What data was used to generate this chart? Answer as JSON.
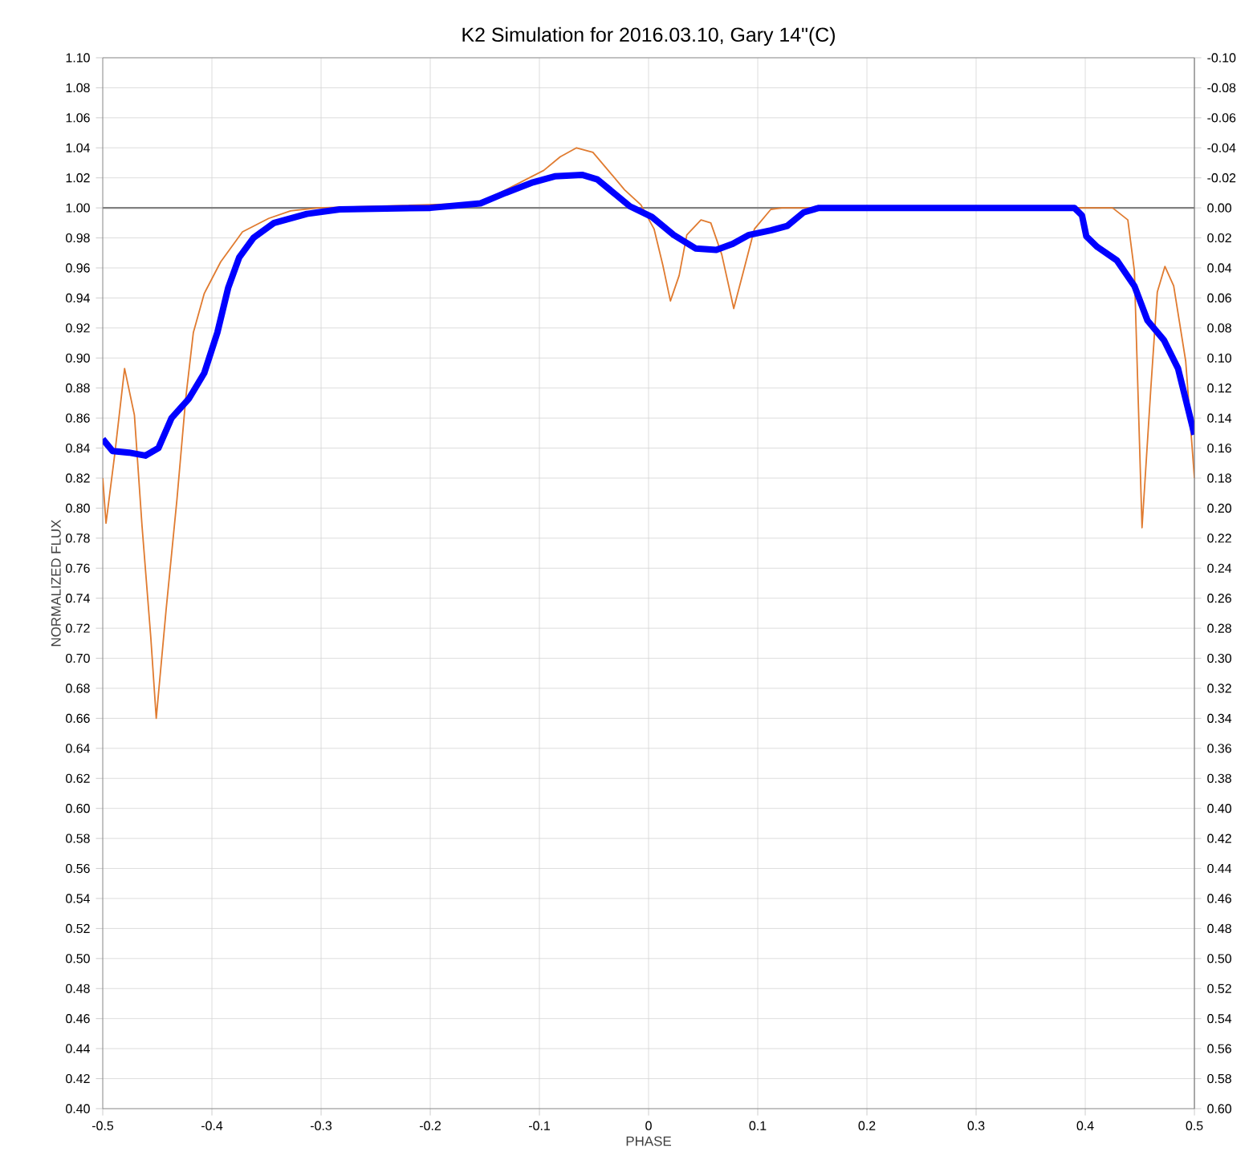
{
  "chart_data": {
    "type": "line",
    "title": "K2 Simulation for 2016.03.10, Gary 14\"(C)",
    "xlabel": "PHASE",
    "ylabel": "NORMALIZED FLUX",
    "xlim": [
      -0.5,
      0.5
    ],
    "xticks": [
      -0.5,
      -0.4,
      -0.3,
      -0.2,
      -0.1,
      0,
      0.1,
      0.2,
      0.3,
      0.4,
      0.5
    ],
    "ylim": [
      0.4,
      1.1
    ],
    "yticks": [
      {
        "value": 0.4,
        "label": "0.40"
      },
      {
        "value": 0.42,
        "label": "0.42"
      },
      {
        "value": 0.44,
        "label": "0.44"
      },
      {
        "value": 0.46,
        "label": "0.46"
      },
      {
        "value": 0.48,
        "label": "0.48"
      },
      {
        "value": 0.5,
        "label": "0.50"
      },
      {
        "value": 0.52,
        "label": "0.52"
      },
      {
        "value": 0.54,
        "label": "0.54"
      },
      {
        "value": 0.56,
        "label": "0.56"
      },
      {
        "value": 0.58,
        "label": "0.58"
      },
      {
        "value": 0.6,
        "label": "0.60"
      },
      {
        "value": 0.62,
        "label": "0.62"
      },
      {
        "value": 0.64,
        "label": "0.64"
      },
      {
        "value": 0.66,
        "label": "0.66"
      },
      {
        "value": 0.68,
        "label": "0.68"
      },
      {
        "value": 0.7,
        "label": "0.70"
      },
      {
        "value": 0.72,
        "label": "0.72"
      },
      {
        "value": 0.74,
        "label": "0.74"
      },
      {
        "value": 0.76,
        "label": "0.76"
      },
      {
        "value": 0.78,
        "label": "0.78"
      },
      {
        "value": 0.8,
        "label": "0.80"
      },
      {
        "value": 0.82,
        "label": "0.82"
      },
      {
        "value": 0.84,
        "label": "0.84"
      },
      {
        "value": 0.86,
        "label": "0.86"
      },
      {
        "value": 0.88,
        "label": "0.88"
      },
      {
        "value": 0.9,
        "label": "0.90"
      },
      {
        "value": 0.92,
        "label": "0.92"
      },
      {
        "value": 0.94,
        "label": "0.94"
      },
      {
        "value": 0.96,
        "label": "0.96"
      },
      {
        "value": 0.98,
        "label": "0.98"
      },
      {
        "value": 1.0,
        "label": "1.00"
      },
      {
        "value": 1.02,
        "label": "1.02"
      },
      {
        "value": 1.04,
        "label": "1.04"
      },
      {
        "value": 1.06,
        "label": "1.06"
      },
      {
        "value": 1.08,
        "label": "1.08"
      },
      {
        "value": 1.1,
        "label": "1.10"
      }
    ],
    "y2lim": [
      0.6,
      -0.1
    ],
    "y2ticks": [
      {
        "value": -0.1,
        "label": "-0.10"
      },
      {
        "value": -0.08,
        "label": "-0.08"
      },
      {
        "value": -0.06,
        "label": "-0.06"
      },
      {
        "value": -0.04,
        "label": "-0.04"
      },
      {
        "value": -0.02,
        "label": "-0.02"
      },
      {
        "value": 0.0,
        "label": "0.00"
      },
      {
        "value": 0.02,
        "label": "0.02"
      },
      {
        "value": 0.04,
        "label": "0.04"
      },
      {
        "value": 0.06,
        "label": "0.06"
      },
      {
        "value": 0.08,
        "label": "0.08"
      },
      {
        "value": 0.1,
        "label": "0.10"
      },
      {
        "value": 0.12,
        "label": "0.12"
      },
      {
        "value": 0.14,
        "label": "0.14"
      },
      {
        "value": 0.16,
        "label": "0.16"
      },
      {
        "value": 0.18,
        "label": "0.18"
      },
      {
        "value": 0.2,
        "label": "0.20"
      },
      {
        "value": 0.22,
        "label": "0.22"
      },
      {
        "value": 0.24,
        "label": "0.24"
      },
      {
        "value": 0.26,
        "label": "0.26"
      },
      {
        "value": 0.28,
        "label": "0.28"
      },
      {
        "value": 0.3,
        "label": "0.30"
      },
      {
        "value": 0.32,
        "label": "0.32"
      },
      {
        "value": 0.34,
        "label": "0.34"
      },
      {
        "value": 0.36,
        "label": "0.36"
      },
      {
        "value": 0.38,
        "label": "0.38"
      },
      {
        "value": 0.4,
        "label": "0.40"
      },
      {
        "value": 0.42,
        "label": "0.42"
      },
      {
        "value": 0.44,
        "label": "0.44"
      },
      {
        "value": 0.46,
        "label": "0.46"
      },
      {
        "value": 0.48,
        "label": "0.48"
      },
      {
        "value": 0.5,
        "label": "0.50"
      },
      {
        "value": 0.52,
        "label": "0.52"
      },
      {
        "value": 0.54,
        "label": "0.54"
      },
      {
        "value": 0.56,
        "label": "0.56"
      },
      {
        "value": 0.58,
        "label": "0.58"
      },
      {
        "value": 0.6,
        "label": "0.60"
      }
    ],
    "grid": true,
    "ref_lines": [
      {
        "axis": "y",
        "value": 1.0,
        "color": "#808080"
      }
    ],
    "series": [
      {
        "color": "#e07b30",
        "x": [
          -0.5,
          -0.497,
          -0.489,
          -0.48,
          -0.471,
          -0.464,
          -0.456,
          -0.451,
          -0.442,
          -0.432,
          -0.424,
          -0.417,
          -0.407,
          -0.392,
          -0.372,
          -0.348,
          -0.328,
          -0.303,
          -0.2,
          -0.155,
          -0.126,
          -0.096,
          -0.081,
          -0.066,
          -0.051,
          -0.037,
          -0.022,
          -0.007,
          0.005,
          0.013,
          0.02,
          0.028,
          0.035,
          0.048,
          0.057,
          0.067,
          0.078,
          0.087,
          0.097,
          0.112,
          0.122,
          0.3,
          0.425,
          0.439,
          0.445,
          0.452,
          0.46,
          0.466,
          0.473,
          0.481,
          0.492,
          0.5
        ],
        "values": [
          0.82,
          0.79,
          0.836,
          0.893,
          0.862,
          0.788,
          0.714,
          0.66,
          0.732,
          0.806,
          0.873,
          0.917,
          0.943,
          0.964,
          0.984,
          0.993,
          0.998,
          1.0,
          null,
          1.003,
          null,
          1.025,
          1.034,
          1.04,
          1.037,
          1.025,
          1.012,
          1.002,
          0.986,
          0.962,
          0.938,
          0.955,
          0.982,
          0.992,
          0.99,
          0.969,
          0.933,
          0.958,
          0.986,
          0.999,
          1.0,
          null,
          1.0,
          0.992,
          0.958,
          0.787,
          0.879,
          0.944,
          0.961,
          0.948,
          0.898,
          0.82
        ]
      },
      {
        "color": "#0000ff",
        "x": [
          -0.5,
          -0.491,
          -0.476,
          -0.461,
          -0.449,
          -0.437,
          -0.421,
          -0.407,
          -0.395,
          -0.385,
          -0.375,
          -0.362,
          -0.343,
          -0.313,
          -0.283,
          -0.2,
          -0.154,
          -0.131,
          -0.106,
          -0.086,
          -0.061,
          -0.047,
          -0.032,
          -0.017,
          0.003,
          0.023,
          0.043,
          0.062,
          0.077,
          0.092,
          0.112,
          0.127,
          0.142,
          0.156,
          0.3,
          0.39,
          0.397,
          0.401,
          0.411,
          0.429,
          0.445,
          0.457,
          0.472,
          0.485,
          0.5
        ],
        "values": [
          0.846,
          0.838,
          0.837,
          0.835,
          0.84,
          0.86,
          0.873,
          0.89,
          0.917,
          0.947,
          0.967,
          0.98,
          0.99,
          0.996,
          0.999,
          1.0,
          1.003,
          1.01,
          1.017,
          1.021,
          1.022,
          1.019,
          1.01,
          1.001,
          0.994,
          0.982,
          0.973,
          0.972,
          0.976,
          0.982,
          0.985,
          0.988,
          0.997,
          1.0,
          1.0,
          1.0,
          0.995,
          0.981,
          0.974,
          0.965,
          0.948,
          0.925,
          0.912,
          0.893,
          0.849
        ]
      }
    ]
  }
}
